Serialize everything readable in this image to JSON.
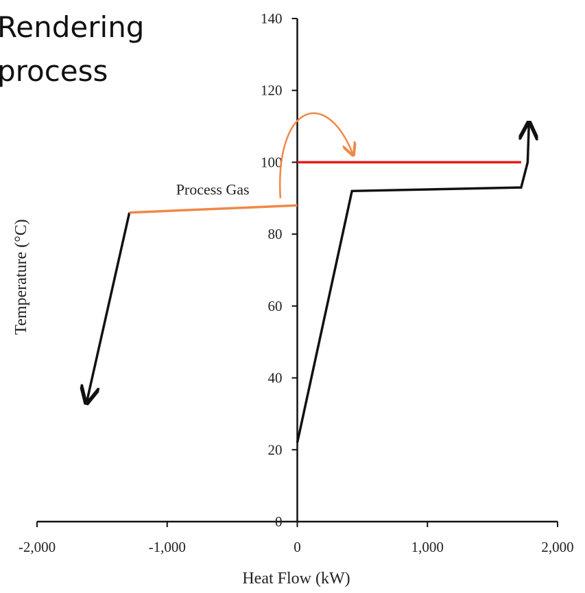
{
  "slide": {
    "title": "Rendering\nprocess"
  },
  "chart_data": {
    "type": "line",
    "title": "",
    "xlabel": "Heat Flow (kW)",
    "ylabel": "Temperature (°C)",
    "xlim": [
      -2000,
      2000
    ],
    "ylim": [
      0,
      140
    ],
    "xticks": [
      -2000,
      -1000,
      0,
      1000,
      2000
    ],
    "xtick_labels": [
      "-2,000",
      "-1,000",
      "0",
      "1,000",
      "2,000"
    ],
    "yticks": [
      0,
      20,
      40,
      60,
      80,
      100,
      120,
      140
    ],
    "ytick_labels": [
      "0",
      "20",
      "40",
      "60",
      "80",
      "100",
      "120",
      "140"
    ],
    "grid": false,
    "series": [
      {
        "name": "",
        "color": "#111111",
        "arrow_end": true,
        "points": [
          [
            -1290,
            86
          ],
          [
            -1620,
            33
          ]
        ]
      },
      {
        "name": "Process Gas",
        "color": "#f08848",
        "points": [
          [
            -1290,
            86
          ],
          [
            0,
            88
          ]
        ]
      },
      {
        "name": "",
        "color": "#e81818",
        "points": [
          [
            0,
            100
          ],
          [
            1720,
            100
          ]
        ]
      },
      {
        "name": "",
        "color": "#111111",
        "arrow_end": true,
        "points": [
          [
            0,
            22
          ],
          [
            420,
            92
          ],
          [
            1720,
            93
          ],
          [
            1770,
            100
          ],
          [
            1780,
            111
          ]
        ]
      }
    ],
    "annotations": [
      {
        "text": "Process Gas",
        "x": -650,
        "y": 91
      }
    ],
    "curved_arrow": {
      "color": "#f08848",
      "from": [
        -130,
        90
      ],
      "to": [
        430,
        102
      ],
      "peak_y": 112
    }
  }
}
